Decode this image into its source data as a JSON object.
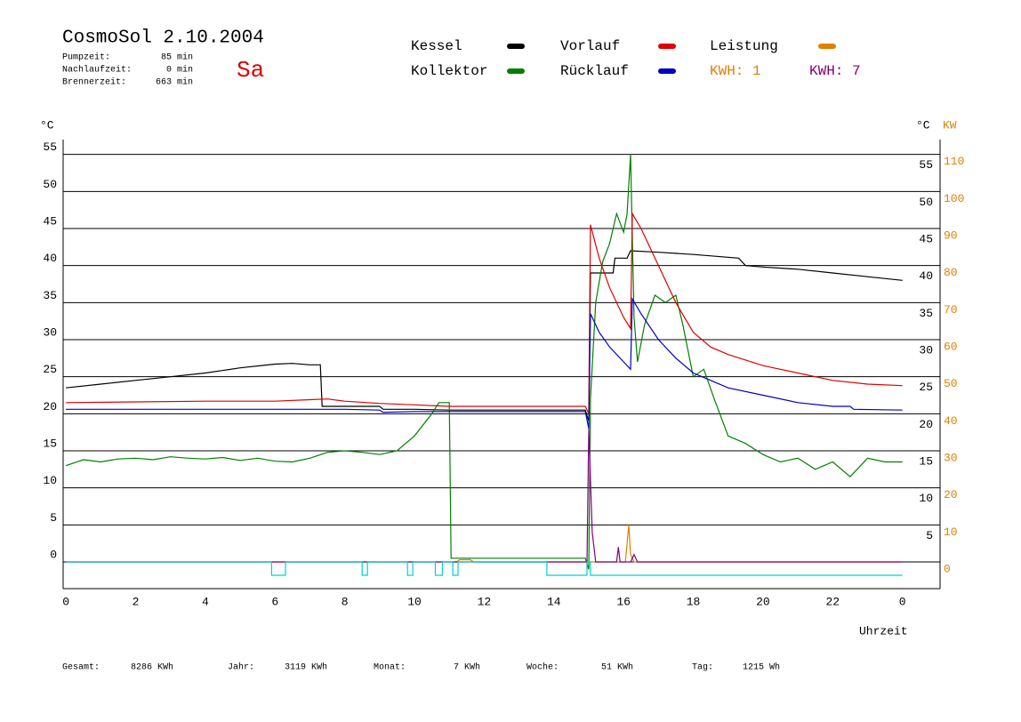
{
  "header": {
    "title": "CosmoSol 2.10.2004",
    "day": "Sa",
    "stats": [
      {
        "label": "Pumpzeit:",
        "value": "85 min"
      },
      {
        "label": "Nachlaufzeit:",
        "value": "0 min"
      },
      {
        "label": "Brennerzeit:",
        "value": "663 min"
      }
    ]
  },
  "footer": [
    {
      "label": "Gesamt:",
      "value": "8286 KWh"
    },
    {
      "label": "Jahr:",
      "value": "3119 KWh"
    },
    {
      "label": "Monat:",
      "value": "7 KWh"
    },
    {
      "label": "Woche:",
      "value": "51 KWh"
    },
    {
      "label": "Tag:",
      "value": "1215 Wh"
    }
  ],
  "chart_data": {
    "type": "line",
    "y_unit": "°C",
    "y2_unit": "KW",
    "x_label": "Uhrzeit",
    "xlim": [
      -0.08,
      25.08
    ],
    "xticks": [
      0,
      2,
      4,
      6,
      8,
      10,
      12,
      14,
      16,
      18,
      20,
      22,
      {
        "value": 24,
        "label": "0"
      }
    ],
    "ylim": [
      -3.6,
      57
    ],
    "yticks": [
      0,
      5,
      10,
      15,
      20,
      25,
      30,
      35,
      40,
      45,
      50,
      55
    ],
    "y2lim": [
      -7.2,
      114
    ],
    "y2ticks": [
      0,
      10,
      20,
      30,
      40,
      50,
      60,
      70,
      80,
      90,
      100,
      110
    ],
    "grid": true,
    "kwh_labels": [
      {
        "text": "KWH: 1",
        "color": "#e08000"
      },
      {
        "text": "KWH: 7",
        "color": "#800080"
      }
    ],
    "series": [
      {
        "name": "Kessel",
        "color": "#000000",
        "x": [
          0,
          1,
          2,
          3,
          4,
          5,
          6,
          6.5,
          7,
          7.3,
          7.35,
          8,
          9,
          9.1,
          10,
          11,
          12,
          13,
          14,
          14.9,
          15,
          15.05,
          15.7,
          15.75,
          16.1,
          16.2,
          17,
          18,
          19.3,
          19.5,
          20,
          21,
          22,
          23,
          24
        ],
        "values": [
          23.5,
          24,
          24.5,
          25,
          25.5,
          26.2,
          26.7,
          26.8,
          26.6,
          26.6,
          21,
          21,
          21,
          20.6,
          20.6,
          20.5,
          20.5,
          20.5,
          20.5,
          20.5,
          19,
          39,
          39,
          41,
          41,
          42,
          41.8,
          41.5,
          41,
          40,
          39.8,
          39.5,
          39,
          38.5,
          38
        ]
      },
      {
        "name": "Kollektor",
        "color": "#008000",
        "x": [
          0,
          0.5,
          1,
          1.5,
          2,
          2.5,
          3,
          3.5,
          4,
          4.5,
          5,
          5.5,
          6,
          6.5,
          7,
          7.5,
          8,
          8.5,
          9,
          9.5,
          10,
          10.5,
          10.7,
          11,
          11.05,
          12,
          13,
          14,
          14.9,
          15,
          15.05,
          15.2,
          15.4,
          15.6,
          15.8,
          16,
          16.1,
          16.2,
          16.3,
          16.4,
          16.6,
          16.9,
          17.2,
          17.5,
          17.7,
          18,
          18.3,
          18.6,
          19,
          19.5,
          20,
          20.5,
          21,
          21.5,
          22,
          22.5,
          23,
          23.5,
          24
        ],
        "values": [
          13,
          13.8,
          13.5,
          13.9,
          14,
          13.8,
          14.2,
          14,
          13.9,
          14.1,
          13.7,
          14,
          13.6,
          13.5,
          14,
          14.8,
          15,
          14.8,
          14.5,
          15,
          17,
          20,
          21.5,
          21.5,
          0.5,
          0.5,
          0.5,
          0.5,
          0.5,
          -1,
          22,
          35,
          40.5,
          43,
          47,
          44.5,
          47,
          55,
          33,
          27,
          32,
          36,
          35,
          36,
          32,
          25,
          26,
          22,
          17,
          16,
          14.5,
          13.5,
          14,
          12.5,
          13.5,
          11.5,
          14,
          13.5,
          13.5
        ]
      },
      {
        "name": "Vorlauf",
        "color": "#e00000",
        "x": [
          0,
          2,
          4,
          6,
          7,
          7.5,
          8,
          9,
          10,
          11,
          12,
          13,
          14,
          14.9,
          15,
          15.05,
          15.3,
          15.6,
          16,
          16.2,
          16.25,
          16.5,
          17,
          17.5,
          18,
          18.5,
          19,
          20,
          21,
          22,
          23,
          24
        ],
        "values": [
          21.5,
          21.6,
          21.7,
          21.7,
          21.9,
          22,
          21.7,
          21.4,
          21.2,
          21,
          21,
          21,
          21,
          21,
          20,
          45.5,
          41,
          37,
          33,
          31.5,
          47,
          45,
          40,
          35,
          31,
          29,
          28,
          26.5,
          25.5,
          24.5,
          24,
          23.8
        ]
      },
      {
        "name": "Rücklauf",
        "color": "#0000c0",
        "x": [
          0,
          2,
          4,
          6,
          8,
          9,
          9.1,
          10,
          11,
          12,
          14,
          14.9,
          15,
          15.05,
          15.3,
          15.6,
          16,
          16.2,
          16.25,
          16.5,
          17,
          17.5,
          18,
          18.5,
          19,
          20,
          21,
          22,
          22.5,
          22.6,
          24
        ],
        "values": [
          20.6,
          20.6,
          20.6,
          20.6,
          20.6,
          20.5,
          20.2,
          20.3,
          20.3,
          20.3,
          20.3,
          20.3,
          18,
          33.5,
          31,
          29,
          27,
          26,
          35.5,
          33.5,
          30,
          27.5,
          25.5,
          24.5,
          23.5,
          22.5,
          21.5,
          21,
          21,
          20.6,
          20.5
        ]
      },
      {
        "name": "Leistung",
        "color": "#e08000",
        "axis": "y2",
        "x": [
          0,
          11.2,
          11.3,
          11.6,
          11.7,
          16.05,
          16.1,
          16.15,
          16.2,
          16.3,
          24
        ],
        "values": [
          0,
          0,
          0.6,
          0.6,
          0,
          0,
          5,
          10,
          2,
          0,
          0
        ]
      },
      {
        "color": "#800080",
        "axis": "y2",
        "x": [
          0,
          14.95,
          15,
          15.1,
          15.2,
          15.8,
          15.85,
          15.9,
          16.2,
          16.3,
          16.4,
          24
        ],
        "values": [
          0,
          0,
          36,
          8,
          0,
          0,
          4,
          0,
          0,
          2,
          0,
          0
        ]
      },
      {
        "color": "#00d0d0",
        "x": [
          0,
          5.9,
          5.9,
          6.3,
          6.3,
          8.5,
          8.5,
          8.65,
          8.65,
          9.8,
          9.8,
          9.95,
          9.95,
          10.6,
          10.6,
          10.8,
          10.8,
          11.1,
          11.1,
          11.25,
          11.25,
          13.8,
          13.8,
          14.95,
          14.95,
          15.05,
          15.05,
          24
        ],
        "values": [
          0,
          0,
          -1.8,
          -1.8,
          0,
          0,
          -1.8,
          -1.8,
          0,
          0,
          -1.8,
          -1.8,
          0,
          0,
          -1.8,
          -1.8,
          0,
          0,
          -1.8,
          -1.8,
          0,
          0,
          -1.8,
          -1.8,
          0,
          0,
          -1.8,
          -1.8
        ]
      }
    ]
  }
}
